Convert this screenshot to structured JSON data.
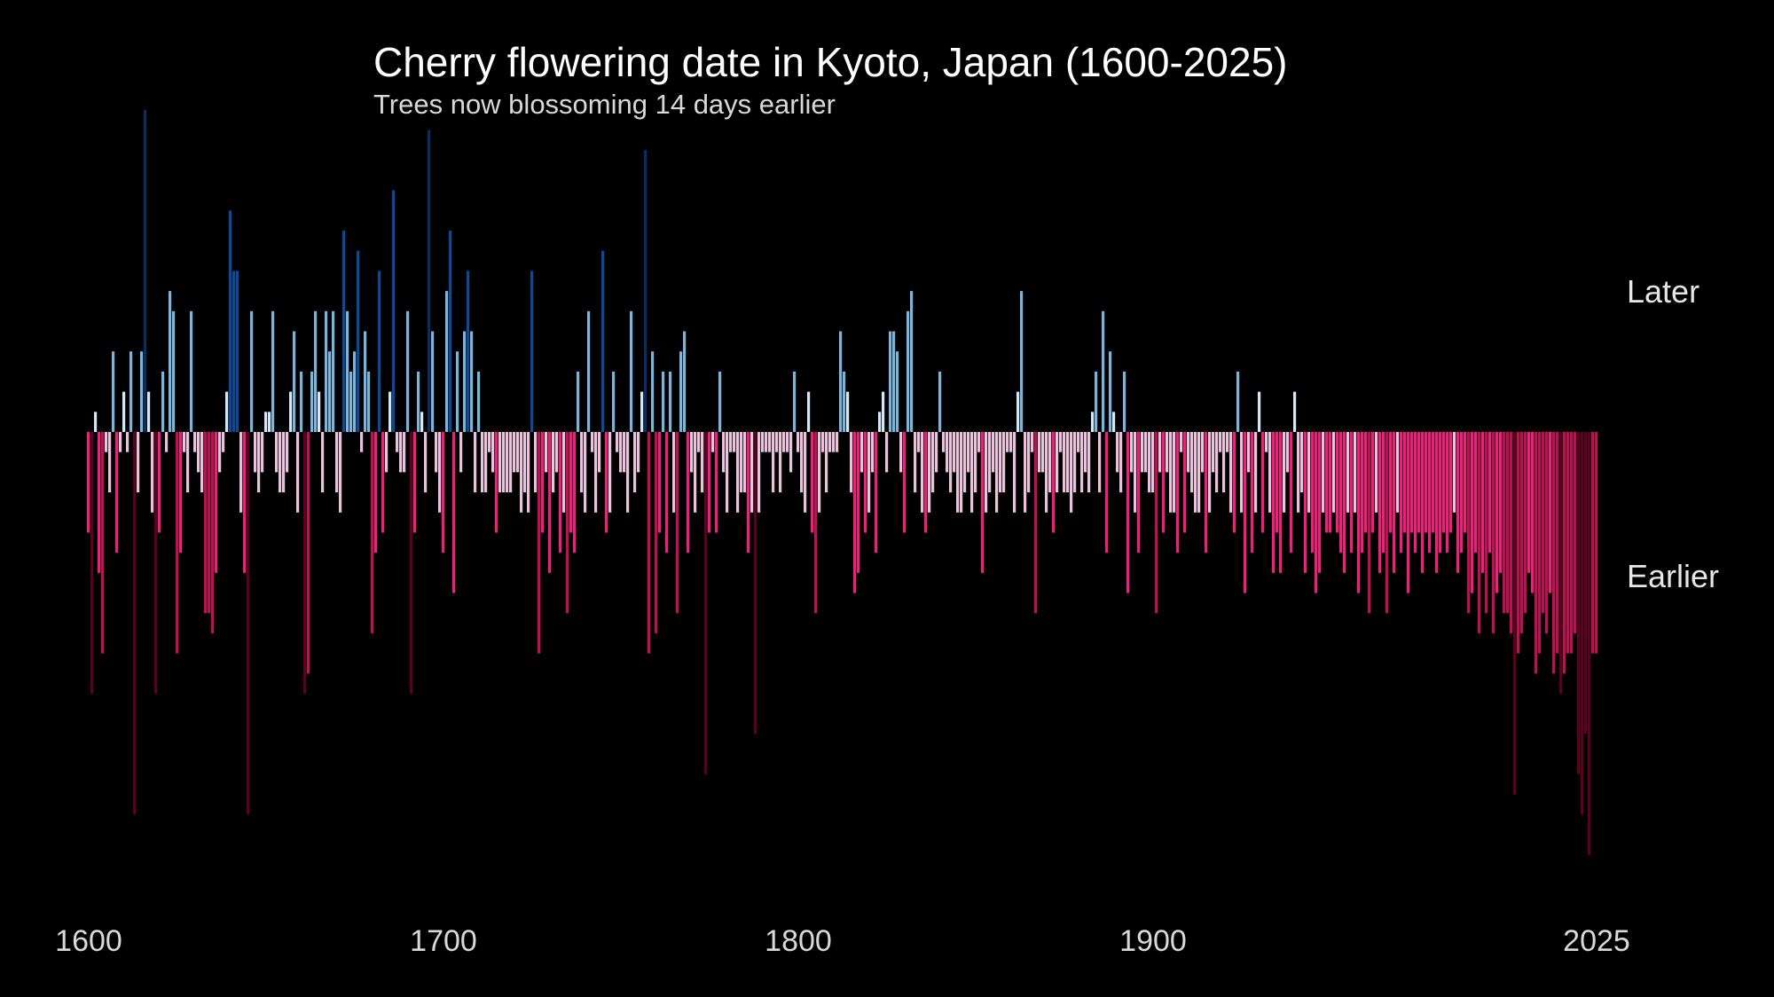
{
  "chart_data": {
    "type": "bar",
    "title": "Cherry flowering date in Kyoto, Japan (1600-2025)",
    "subtitle": "Trees now blossoming 14 days earlier",
    "xlabel": "",
    "ylabel": "",
    "direction_labels": {
      "up": "Later",
      "down": "Earlier"
    },
    "xlim": [
      1600,
      2025
    ],
    "ylim": [
      -22,
      16
    ],
    "x_ticks": [
      {
        "value": 1600,
        "label": "1600"
      },
      {
        "value": 1700,
        "label": "1700"
      },
      {
        "value": 1800,
        "label": "1800"
      },
      {
        "value": 1900,
        "label": "1900"
      },
      {
        "value": 2025,
        "label": "2025"
      }
    ],
    "value_unit": "days relative to long-term average flowering date (positive = later)",
    "colors": {
      "background": "#000000",
      "late_light": "#d7e6f5",
      "late_mid": "#7db4dc",
      "late_dark": "#0b4a96",
      "late_deep": "#0a2d63",
      "early_light": "#e9c2dc",
      "early_mid": "#f01f7e",
      "early_dark": "#c00f55",
      "early_deep": "#5e0022"
    },
    "keyframes": [
      [
        1600,
        -5
      ],
      [
        1601,
        -13
      ],
      [
        1602,
        1
      ],
      [
        1603,
        -7
      ],
      [
        1604,
        -11
      ],
      [
        1605,
        -1
      ],
      [
        1606,
        -3
      ],
      [
        1607,
        4
      ],
      [
        1608,
        -6
      ],
      [
        1609,
        -1
      ],
      [
        1610,
        2
      ],
      [
        1611,
        -1
      ],
      [
        1612,
        4
      ],
      [
        1613,
        -19
      ],
      [
        1614,
        -3
      ],
      [
        1615,
        4
      ],
      [
        1616,
        16
      ],
      [
        1617,
        2
      ],
      [
        1618,
        -4
      ],
      [
        1619,
        -13
      ],
      [
        1620,
        -5
      ],
      [
        1621,
        3
      ],
      [
        1622,
        -1
      ],
      [
        1623,
        7
      ],
      [
        1624,
        6
      ],
      [
        1625,
        -11
      ],
      [
        1626,
        -6
      ],
      [
        1627,
        -1
      ],
      [
        1628,
        -3
      ],
      [
        1629,
        6
      ],
      [
        1630,
        -1
      ],
      [
        1631,
        -2
      ],
      [
        1632,
        -3
      ],
      [
        1633,
        -9
      ],
      [
        1634,
        -9
      ],
      [
        1635,
        -10
      ],
      [
        1636,
        -7
      ],
      [
        1637,
        -2
      ],
      [
        1638,
        -1
      ],
      [
        1639,
        2
      ],
      [
        1640,
        11
      ],
      [
        1641,
        8
      ],
      [
        1642,
        8
      ],
      [
        1643,
        -4
      ],
      [
        1644,
        -7
      ],
      [
        1645,
        -19
      ],
      [
        1646,
        6
      ],
      [
        1647,
        -2
      ],
      [
        1648,
        -3
      ],
      [
        1649,
        -2
      ],
      [
        1650,
        1
      ],
      [
        1651,
        1
      ],
      [
        1652,
        6
      ],
      [
        1653,
        -2
      ],
      [
        1654,
        -3
      ],
      [
        1655,
        -3
      ],
      [
        1656,
        -2
      ],
      [
        1657,
        2
      ],
      [
        1658,
        5
      ],
      [
        1659,
        -4
      ],
      [
        1660,
        3
      ],
      [
        1661,
        -13
      ],
      [
        1662,
        -12
      ],
      [
        1663,
        3
      ],
      [
        1664,
        6
      ],
      [
        1665,
        2
      ],
      [
        1666,
        -3
      ],
      [
        1667,
        6
      ],
      [
        1668,
        4
      ],
      [
        1669,
        6
      ],
      [
        1670,
        -3
      ],
      [
        1671,
        -4
      ],
      [
        1672,
        10
      ],
      [
        1673,
        6
      ],
      [
        1674,
        3
      ],
      [
        1675,
        4
      ],
      [
        1676,
        9
      ],
      [
        1677,
        -1
      ],
      [
        1678,
        5
      ],
      [
        1679,
        3
      ],
      [
        1680,
        -10
      ],
      [
        1681,
        -6
      ],
      [
        1682,
        8
      ],
      [
        1683,
        -5
      ],
      [
        1684,
        -2
      ],
      [
        1685,
        2
      ],
      [
        1686,
        12
      ],
      [
        1687,
        -1
      ],
      [
        1688,
        -2
      ],
      [
        1689,
        -2
      ],
      [
        1690,
        6
      ],
      [
        1691,
        -13
      ],
      [
        1692,
        -5
      ],
      [
        1693,
        3
      ],
      [
        1694,
        1
      ],
      [
        1695,
        -3
      ],
      [
        1696,
        15
      ],
      [
        1697,
        5
      ],
      [
        1698,
        -2
      ],
      [
        1699,
        -4
      ],
      [
        1700,
        -6
      ],
      [
        1701,
        7
      ],
      [
        1702,
        10
      ],
      [
        1703,
        -8
      ],
      [
        1704,
        4
      ],
      [
        1705,
        -2
      ],
      [
        1706,
        5
      ],
      [
        1707,
        8
      ],
      [
        1708,
        5
      ],
      [
        1709,
        -3
      ],
      [
        1710,
        3
      ],
      [
        1711,
        -3
      ],
      [
        1712,
        -3
      ],
      [
        1713,
        -1
      ],
      [
        1714,
        -2
      ],
      [
        1715,
        -5
      ],
      [
        1716,
        -3
      ],
      [
        1717,
        -3
      ],
      [
        1718,
        -3
      ],
      [
        1719,
        -3
      ],
      [
        1720,
        -2
      ],
      [
        1721,
        -2
      ],
      [
        1722,
        -4
      ],
      [
        1723,
        -3
      ],
      [
        1724,
        -4
      ],
      [
        1725,
        8
      ],
      [
        1726,
        -3
      ],
      [
        1727,
        -11
      ],
      [
        1728,
        -5
      ],
      [
        1729,
        -2
      ],
      [
        1730,
        -7
      ],
      [
        1731,
        -3
      ],
      [
        1732,
        -2
      ],
      [
        1733,
        -6
      ],
      [
        1734,
        -4
      ],
      [
        1735,
        -9
      ],
      [
        1736,
        -5
      ],
      [
        1737,
        -6
      ],
      [
        1738,
        3
      ],
      [
        1739,
        -3
      ],
      [
        1740,
        -4
      ],
      [
        1741,
        6
      ],
      [
        1742,
        -1
      ],
      [
        1743,
        -4
      ],
      [
        1744,
        -2
      ],
      [
        1745,
        9
      ],
      [
        1746,
        -5
      ],
      [
        1747,
        -4
      ],
      [
        1748,
        3
      ],
      [
        1749,
        -1
      ],
      [
        1750,
        -2
      ],
      [
        1751,
        -2
      ],
      [
        1752,
        -4
      ],
      [
        1753,
        6
      ],
      [
        1754,
        -3
      ],
      [
        1755,
        -2
      ],
      [
        1756,
        2
      ],
      [
        1757,
        14
      ],
      [
        1758,
        -11
      ],
      [
        1759,
        4
      ],
      [
        1760,
        -10
      ],
      [
        1761,
        -5
      ],
      [
        1762,
        3
      ],
      [
        1763,
        -6
      ],
      [
        1764,
        3
      ],
      [
        1765,
        -4
      ],
      [
        1766,
        -9
      ],
      [
        1767,
        4
      ],
      [
        1768,
        5
      ],
      [
        1769,
        -6
      ],
      [
        1770,
        -2
      ],
      [
        1771,
        -4
      ],
      [
        1772,
        -1
      ],
      [
        1773,
        -3
      ],
      [
        1774,
        -17
      ],
      [
        1775,
        -5
      ],
      [
        1776,
        -1
      ],
      [
        1777,
        -5
      ],
      [
        1778,
        3
      ],
      [
        1779,
        -2
      ],
      [
        1780,
        -4
      ],
      [
        1781,
        -1
      ],
      [
        1782,
        -1
      ],
      [
        1783,
        -4
      ],
      [
        1784,
        -3
      ],
      [
        1785,
        -3
      ],
      [
        1786,
        -6
      ],
      [
        1787,
        -4
      ],
      [
        1788,
        -15
      ],
      [
        1789,
        -4
      ],
      [
        1790,
        -1
      ],
      [
        1791,
        -1
      ],
      [
        1792,
        -1
      ],
      [
        1793,
        -3
      ],
      [
        1794,
        -1
      ],
      [
        1795,
        -3
      ],
      [
        1796,
        -1
      ],
      [
        1797,
        -1
      ],
      [
        1798,
        -2
      ],
      [
        1799,
        3
      ],
      [
        1800,
        -1
      ],
      [
        1801,
        -3
      ],
      [
        1802,
        -4
      ],
      [
        1803,
        2
      ],
      [
        1804,
        -5
      ],
      [
        1805,
        -9
      ],
      [
        1806,
        -4
      ],
      [
        1807,
        -1
      ],
      [
        1808,
        -3
      ],
      [
        1809,
        -1
      ],
      [
        1810,
        -1
      ],
      [
        1811,
        -1
      ],
      [
        1812,
        5
      ],
      [
        1813,
        3
      ],
      [
        1814,
        2
      ],
      [
        1815,
        -3
      ],
      [
        1816,
        -8
      ],
      [
        1817,
        -7
      ],
      [
        1818,
        -2
      ],
      [
        1819,
        -5
      ],
      [
        1820,
        -4
      ],
      [
        1821,
        -2
      ],
      [
        1822,
        -6
      ],
      [
        1823,
        1
      ],
      [
        1824,
        2
      ],
      [
        1825,
        -2
      ],
      [
        1826,
        5
      ],
      [
        1827,
        5
      ],
      [
        1828,
        4
      ],
      [
        1829,
        -2
      ],
      [
        1830,
        -5
      ],
      [
        1831,
        6
      ],
      [
        1832,
        7
      ],
      [
        1833,
        -3
      ],
      [
        1834,
        -1
      ],
      [
        1835,
        -4
      ],
      [
        1836,
        -5
      ],
      [
        1837,
        -4
      ],
      [
        1838,
        -3
      ],
      [
        1839,
        -2
      ],
      [
        1840,
        3
      ],
      [
        1841,
        -1
      ],
      [
        1842,
        -2
      ],
      [
        1843,
        -3
      ],
      [
        1844,
        -2
      ],
      [
        1845,
        -4
      ],
      [
        1846,
        -4
      ],
      [
        1847,
        -3
      ],
      [
        1848,
        -2
      ],
      [
        1849,
        -4
      ],
      [
        1850,
        -3
      ],
      [
        1851,
        -1
      ],
      [
        1852,
        -7
      ],
      [
        1853,
        -4
      ],
      [
        1854,
        -3
      ],
      [
        1855,
        -2
      ],
      [
        1856,
        -4
      ],
      [
        1857,
        -3
      ],
      [
        1858,
        -3
      ],
      [
        1859,
        -1
      ],
      [
        1860,
        -1
      ],
      [
        1861,
        -4
      ],
      [
        1862,
        2
      ],
      [
        1863,
        7
      ],
      [
        1864,
        -4
      ],
      [
        1865,
        -3
      ],
      [
        1866,
        -1
      ],
      [
        1867,
        -9
      ],
      [
        1868,
        -2
      ],
      [
        1869,
        -2
      ],
      [
        1870,
        -4
      ],
      [
        1871,
        -3
      ],
      [
        1872,
        -5
      ],
      [
        1873,
        -3
      ],
      [
        1874,
        -1
      ],
      [
        1875,
        -3
      ],
      [
        1876,
        -3
      ],
      [
        1877,
        -4
      ],
      [
        1878,
        -3
      ],
      [
        1879,
        -1
      ],
      [
        1880,
        -3
      ],
      [
        1881,
        -2
      ],
      [
        1882,
        -3
      ],
      [
        1883,
        1
      ],
      [
        1884,
        3
      ],
      [
        1885,
        -3
      ],
      [
        1886,
        6
      ],
      [
        1887,
        -6
      ],
      [
        1888,
        4
      ],
      [
        1889,
        1
      ],
      [
        1890,
        -2
      ],
      [
        1891,
        -3
      ],
      [
        1892,
        3
      ],
      [
        1893,
        -8
      ],
      [
        1894,
        -2
      ],
      [
        1895,
        -4
      ],
      [
        1896,
        -6
      ],
      [
        1897,
        -2
      ],
      [
        1898,
        -2
      ],
      [
        1899,
        -3
      ],
      [
        1900,
        -3
      ],
      [
        1901,
        -9
      ],
      [
        1902,
        -2
      ],
      [
        1903,
        -5
      ],
      [
        1904,
        -2
      ],
      [
        1905,
        -4
      ],
      [
        1906,
        -4
      ],
      [
        1907,
        -6
      ],
      [
        1908,
        -1
      ],
      [
        1909,
        -5
      ],
      [
        1910,
        -2
      ],
      [
        1911,
        -3
      ],
      [
        1912,
        -4
      ],
      [
        1913,
        -4
      ],
      [
        1914,
        -2
      ],
      [
        1915,
        -6
      ],
      [
        1916,
        -4
      ],
      [
        1917,
        -2
      ],
      [
        1918,
        -3
      ],
      [
        1919,
        -1
      ],
      [
        1920,
        -3
      ],
      [
        1921,
        -1
      ],
      [
        1922,
        -4
      ],
      [
        1923,
        -5
      ],
      [
        1924,
        3
      ],
      [
        1925,
        -4
      ],
      [
        1926,
        -8
      ],
      [
        1927,
        -2
      ],
      [
        1928,
        -6
      ],
      [
        1929,
        -4
      ],
      [
        1930,
        2
      ],
      [
        1931,
        -5
      ],
      [
        1932,
        -1
      ],
      [
        1933,
        -4
      ],
      [
        1934,
        -7
      ],
      [
        1935,
        -5
      ],
      [
        1936,
        -7
      ],
      [
        1937,
        -4
      ],
      [
        1938,
        -2
      ],
      [
        1939,
        -6
      ],
      [
        1940,
        2
      ],
      [
        1941,
        -4
      ],
      [
        1942,
        -3
      ],
      [
        1943,
        -7
      ],
      [
        1944,
        -4
      ],
      [
        1945,
        -6
      ],
      [
        1946,
        -8
      ],
      [
        1947,
        -7
      ],
      [
        1948,
        -4
      ],
      [
        1949,
        -5
      ],
      [
        1950,
        -5
      ],
      [
        1951,
        -4
      ],
      [
        1952,
        -5
      ],
      [
        1953,
        -6
      ],
      [
        1954,
        -7
      ],
      [
        1955,
        -4
      ],
      [
        1956,
        -6
      ],
      [
        1957,
        -4
      ],
      [
        1958,
        -8
      ],
      [
        1959,
        -6
      ],
      [
        1960,
        -5
      ],
      [
        1961,
        -9
      ],
      [
        1962,
        -5
      ],
      [
        1963,
        -4
      ],
      [
        1964,
        -7
      ],
      [
        1965,
        -6
      ],
      [
        1966,
        -9
      ],
      [
        1967,
        -5
      ],
      [
        1968,
        -7
      ],
      [
        1969,
        -4
      ],
      [
        1970,
        -6
      ],
      [
        1971,
        -5
      ],
      [
        1972,
        -8
      ],
      [
        1973,
        -5
      ],
      [
        1974,
        -6
      ],
      [
        1975,
        -5
      ],
      [
        1976,
        -7
      ],
      [
        1977,
        -5
      ],
      [
        1978,
        -6
      ],
      [
        1979,
        -5
      ],
      [
        1980,
        -7
      ],
      [
        1981,
        -6
      ],
      [
        1982,
        -5
      ],
      [
        1983,
        -6
      ],
      [
        1984,
        -5
      ],
      [
        1985,
        -4
      ],
      [
        1986,
        -7
      ],
      [
        1987,
        -6
      ],
      [
        1988,
        -5
      ],
      [
        1989,
        -9
      ],
      [
        1990,
        -8
      ],
      [
        1991,
        -6
      ],
      [
        1992,
        -10
      ],
      [
        1993,
        -7
      ],
      [
        1994,
        -9
      ],
      [
        1995,
        -6
      ],
      [
        1996,
        -10
      ],
      [
        1997,
        -8
      ],
      [
        1998,
        -7
      ],
      [
        1999,
        -9
      ],
      [
        2000,
        -9
      ],
      [
        2001,
        -10
      ],
      [
        2002,
        -18
      ],
      [
        2003,
        -11
      ],
      [
        2004,
        -10
      ],
      [
        2005,
        -9
      ],
      [
        2006,
        -7
      ],
      [
        2007,
        -8
      ],
      [
        2008,
        -12
      ],
      [
        2009,
        -11
      ],
      [
        2010,
        -9
      ],
      [
        2011,
        -10
      ],
      [
        2012,
        -8
      ],
      [
        2013,
        -12
      ],
      [
        2014,
        -11
      ],
      [
        2015,
        -13
      ],
      [
        2016,
        -12
      ],
      [
        2017,
        -11
      ],
      [
        2018,
        -11
      ],
      [
        2019,
        -10
      ],
      [
        2020,
        -17
      ],
      [
        2021,
        -19
      ],
      [
        2022,
        -15
      ],
      [
        2023,
        -21
      ],
      [
        2024,
        -11
      ],
      [
        2025,
        -11
      ]
    ]
  }
}
